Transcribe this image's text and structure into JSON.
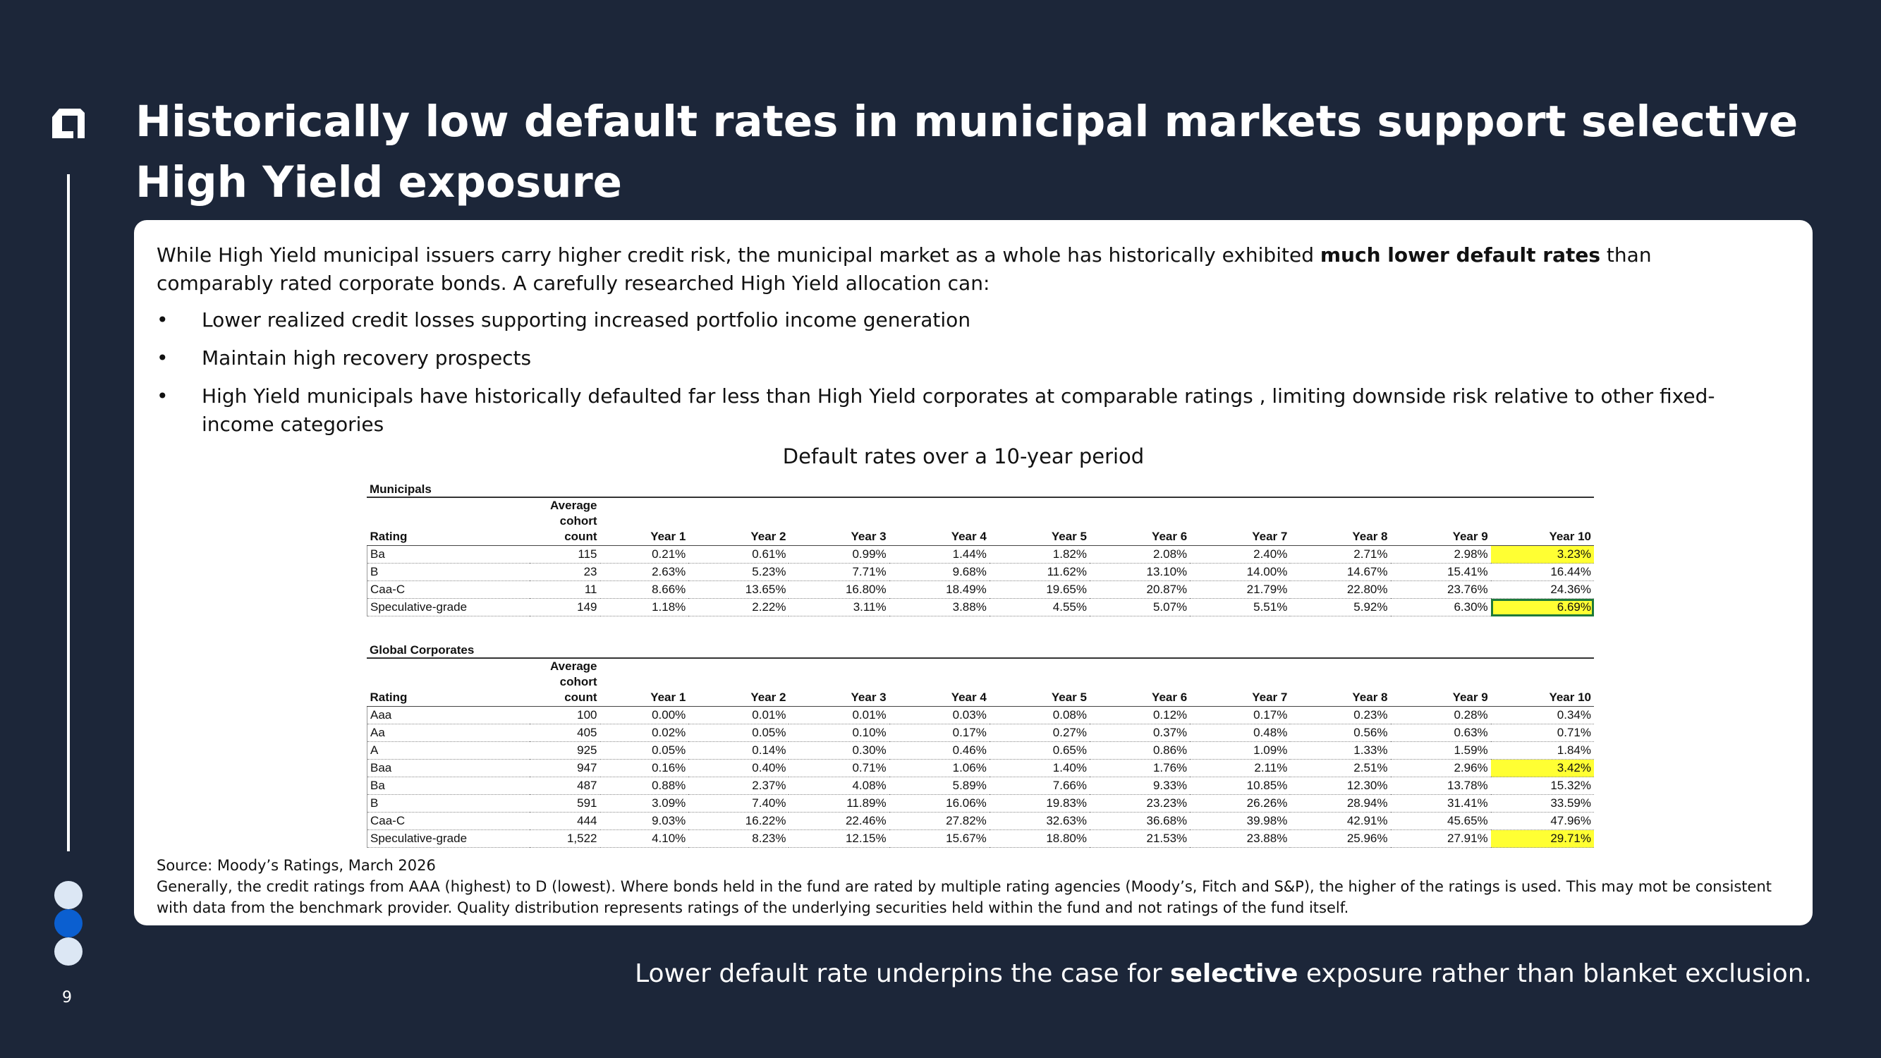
{
  "slide": {
    "title": "Historically low default rates in municipal markets support selective High Yield exposure",
    "page_number": "9"
  },
  "intro": {
    "before": "While High Yield municipal issuers carry higher credit risk, the municipal market as a whole has historically exhibited ",
    "bold": "much lower default rates",
    "after": " than comparably rated corporate bonds. A carefully researched High Yield allocation can:"
  },
  "bullets": [
    "Lower realized credit losses supporting increased portfolio income generation",
    "Maintain high recovery prospects",
    "High Yield municipals have historically defaulted far less than High Yield corporates at comparable ratings , limiting downside risk relative to other fixed-income categories"
  ],
  "table_title": "Default rates over a 10-year period",
  "header": {
    "rating": "Rating",
    "count_l1": "Average",
    "count_l2": "cohort",
    "count_l3": "count",
    "years": [
      "Year 1",
      "Year 2",
      "Year 3",
      "Year 4",
      "Year 5",
      "Year 6",
      "Year 7",
      "Year 8",
      "Year 9",
      "Year 10"
    ]
  },
  "municipals": {
    "title": "Municipals",
    "rows": [
      {
        "rating": "Ba",
        "count": "115",
        "v": [
          "0.21%",
          "0.61%",
          "0.99%",
          "1.44%",
          "1.82%",
          "2.08%",
          "2.40%",
          "2.71%",
          "2.98%",
          "3.23%"
        ]
      },
      {
        "rating": "B",
        "count": "23",
        "v": [
          "2.63%",
          "5.23%",
          "7.71%",
          "9.68%",
          "11.62%",
          "13.10%",
          "14.00%",
          "14.67%",
          "15.41%",
          "16.44%"
        ]
      },
      {
        "rating": "Caa-C",
        "count": "11",
        "v": [
          "8.66%",
          "13.65%",
          "16.80%",
          "18.49%",
          "19.65%",
          "20.87%",
          "21.79%",
          "22.80%",
          "23.76%",
          "24.36%"
        ]
      },
      {
        "rating": "Speculative-grade",
        "count": "149",
        "v": [
          "1.18%",
          "2.22%",
          "3.11%",
          "3.88%",
          "4.55%",
          "5.07%",
          "5.51%",
          "5.92%",
          "6.30%",
          "6.69%"
        ]
      }
    ]
  },
  "corporates": {
    "title": "Global Corporates",
    "rows": [
      {
        "rating": "Aaa",
        "count": "100",
        "v": [
          "0.00%",
          "0.01%",
          "0.01%",
          "0.03%",
          "0.08%",
          "0.12%",
          "0.17%",
          "0.23%",
          "0.28%",
          "0.34%"
        ]
      },
      {
        "rating": "Aa",
        "count": "405",
        "v": [
          "0.02%",
          "0.05%",
          "0.10%",
          "0.17%",
          "0.27%",
          "0.37%",
          "0.48%",
          "0.56%",
          "0.63%",
          "0.71%"
        ]
      },
      {
        "rating": "A",
        "count": "925",
        "v": [
          "0.05%",
          "0.14%",
          "0.30%",
          "0.46%",
          "0.65%",
          "0.86%",
          "1.09%",
          "1.33%",
          "1.59%",
          "1.84%"
        ]
      },
      {
        "rating": "Baa",
        "count": "947",
        "v": [
          "0.16%",
          "0.40%",
          "0.71%",
          "1.06%",
          "1.40%",
          "1.76%",
          "2.11%",
          "2.51%",
          "2.96%",
          "3.42%"
        ]
      },
      {
        "rating": "Ba",
        "count": "487",
        "v": [
          "0.88%",
          "2.37%",
          "4.08%",
          "5.89%",
          "7.66%",
          "9.33%",
          "10.85%",
          "12.30%",
          "13.78%",
          "15.32%"
        ]
      },
      {
        "rating": "B",
        "count": "591",
        "v": [
          "3.09%",
          "7.40%",
          "11.89%",
          "16.06%",
          "19.83%",
          "23.23%",
          "26.26%",
          "28.94%",
          "31.41%",
          "33.59%"
        ]
      },
      {
        "rating": "Caa-C",
        "count": "444",
        "v": [
          "9.03%",
          "16.22%",
          "22.46%",
          "27.82%",
          "32.63%",
          "36.68%",
          "39.98%",
          "42.91%",
          "45.65%",
          "47.96%"
        ]
      },
      {
        "rating": "Speculative-grade",
        "count": "1,522",
        "v": [
          "4.10%",
          "8.23%",
          "12.15%",
          "15.67%",
          "18.80%",
          "21.53%",
          "23.88%",
          "25.96%",
          "27.91%",
          "29.71%"
        ]
      }
    ]
  },
  "highlight_color": "#ffff33",
  "source": {
    "line1": "Source: Moody’s Ratings, March 2026",
    "line2": "Generally, the credit ratings from AAA (highest) to D (lowest). Where bonds held in the fund are rated by multiple rating agencies (Moody’s, Fitch and S&P), the higher of the ratings is used. This may mot be consistent with data from the benchmark provider. Quality distribution represents ratings of the underlying securities held within the fund and not ratings of the fund itself."
  },
  "footer": {
    "before": "Lower default rate underpins the case for ",
    "bold": "selective",
    "after": " exposure rather than blanket exclusion."
  }
}
